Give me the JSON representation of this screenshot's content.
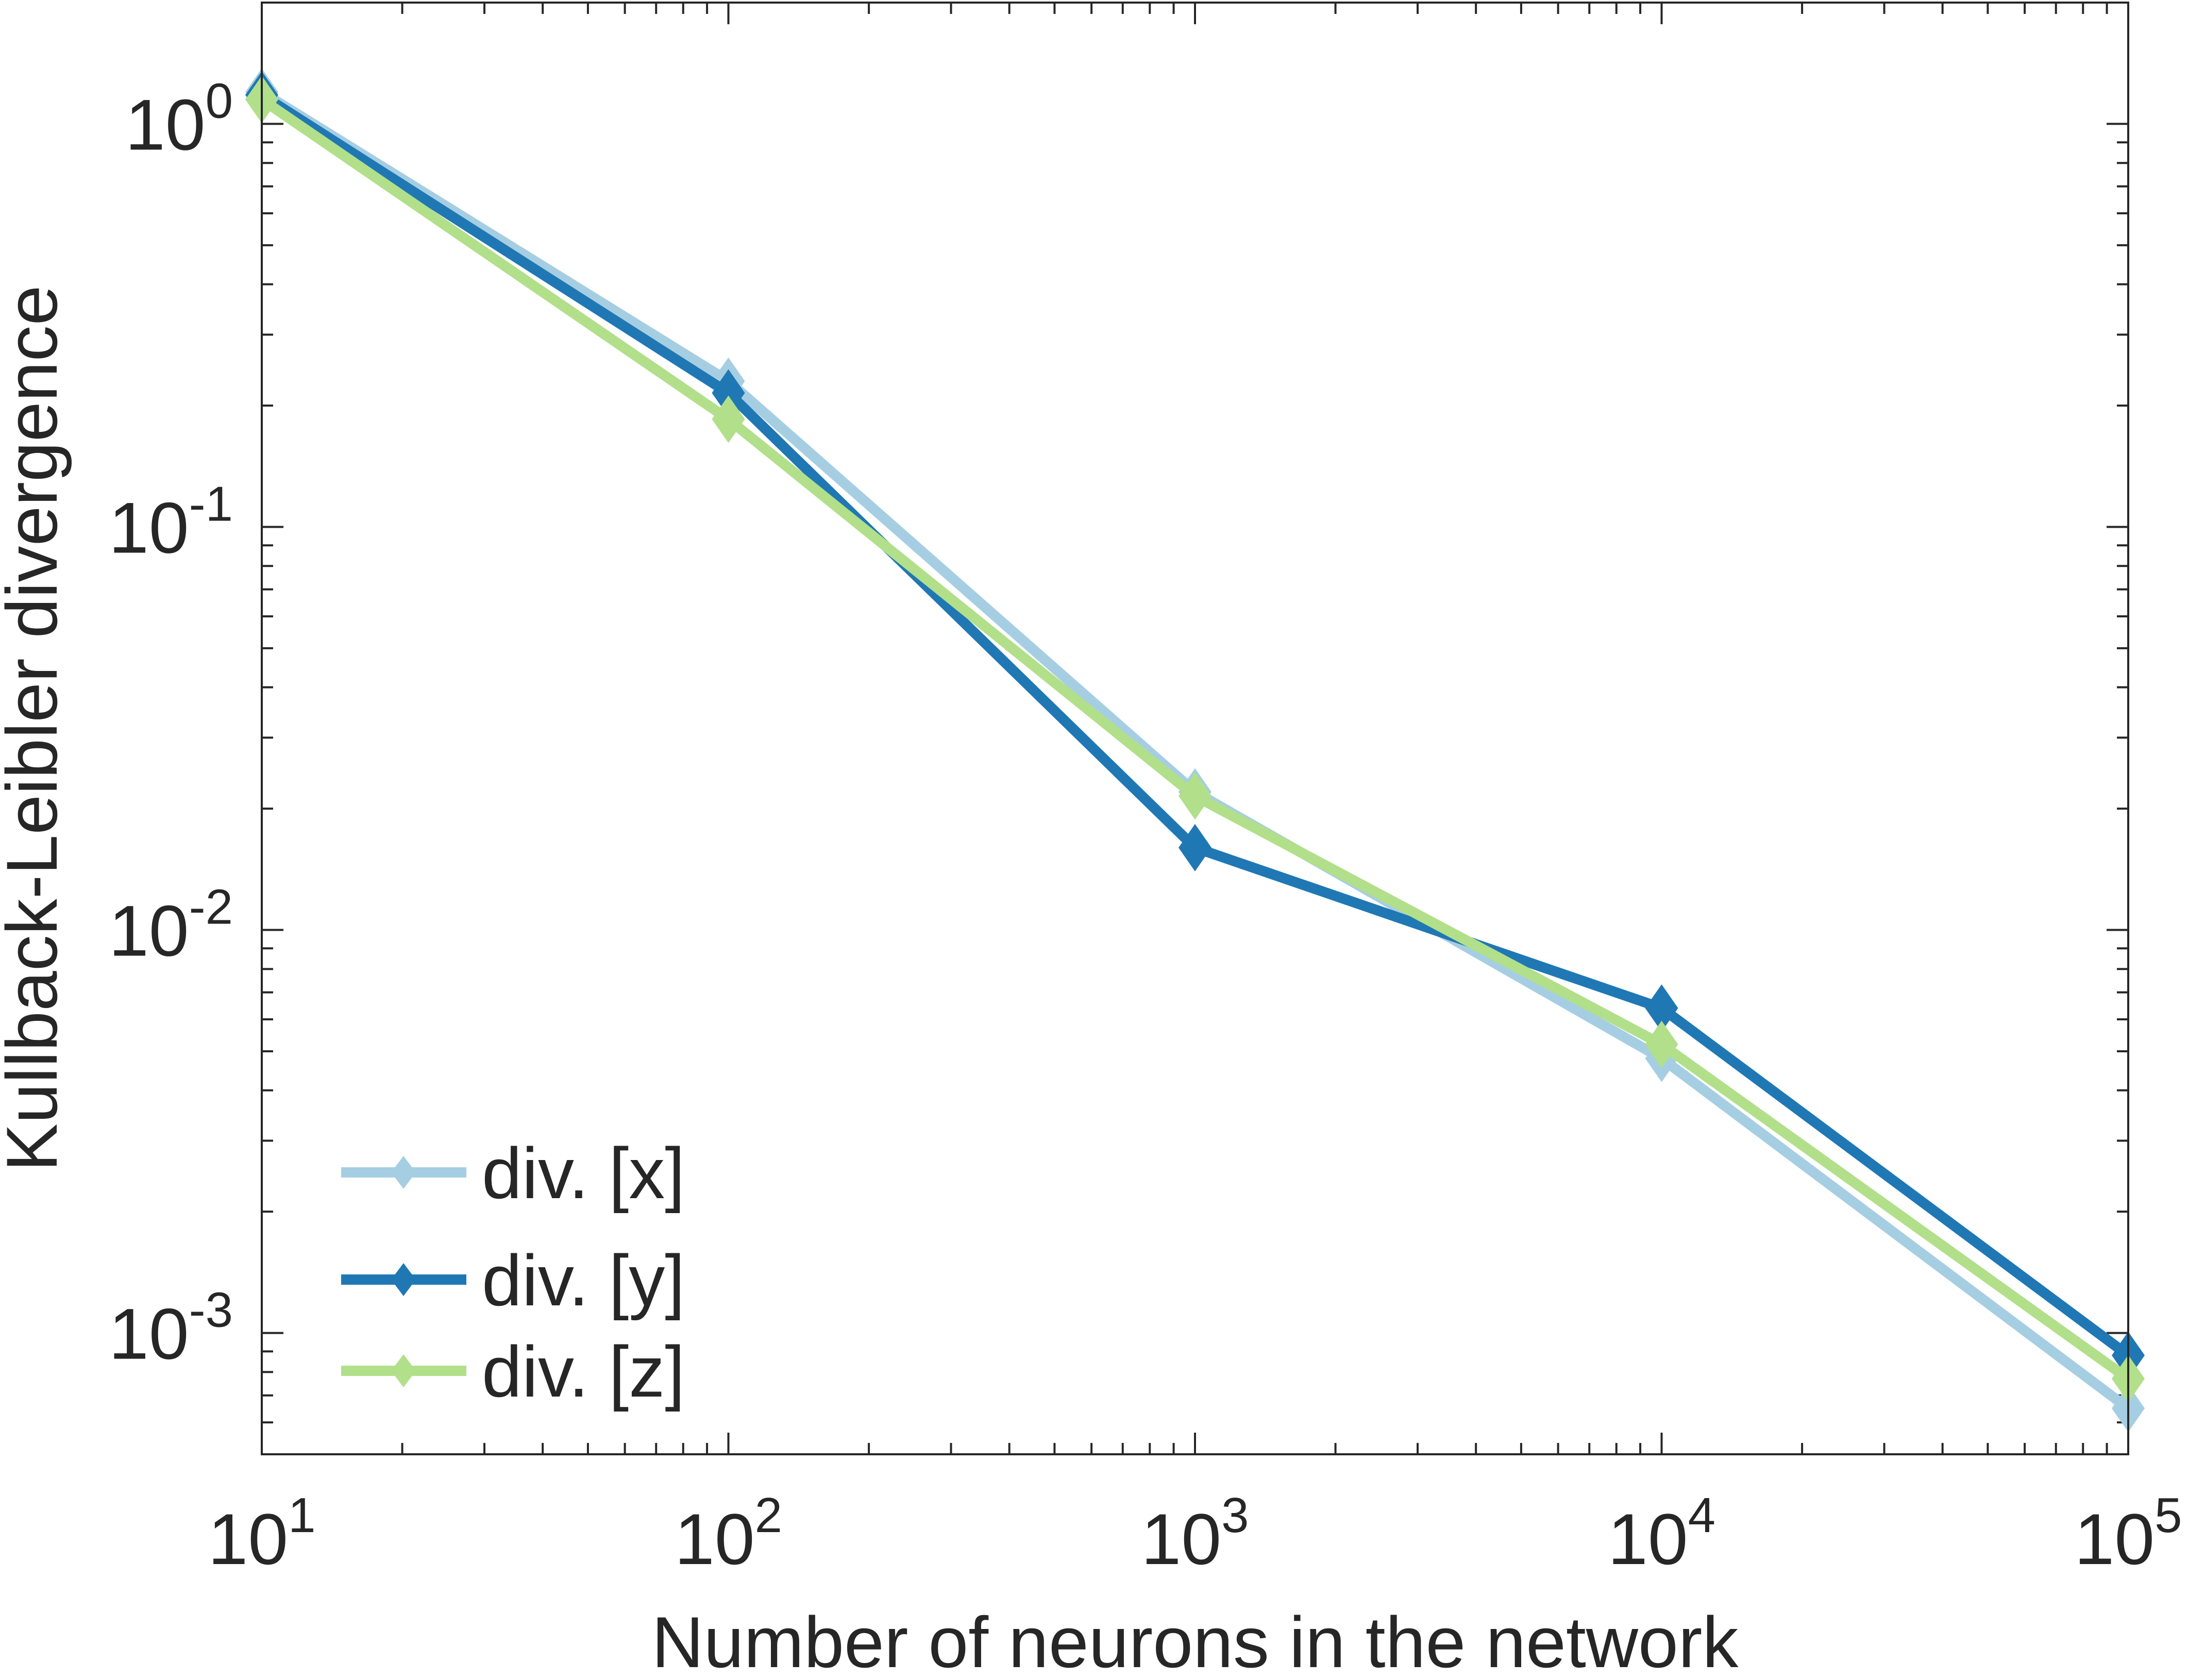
{
  "chart_data": {
    "type": "line",
    "xscale": "log",
    "yscale": "log",
    "xlim": [
      10,
      100000
    ],
    "ylim": [
      0.0005,
      2
    ],
    "xlabel": "Number of neurons in the network",
    "ylabel": "Kullback-Leibler divergence",
    "x_ticks": [
      {
        "base": "10",
        "exp": "1"
      },
      {
        "base": "10",
        "exp": "2"
      },
      {
        "base": "10",
        "exp": "3"
      },
      {
        "base": "10",
        "exp": "4"
      },
      {
        "base": "10",
        "exp": "5"
      }
    ],
    "y_ticks": [
      {
        "base": "10",
        "exp": "0"
      },
      {
        "base": "10",
        "exp": "-1"
      },
      {
        "base": "10",
        "exp": "-2"
      },
      {
        "base": "10",
        "exp": "-3"
      }
    ],
    "grid": false,
    "legend": "bottom-left",
    "x": [
      10,
      100,
      1000,
      10000,
      100000
    ],
    "series": [
      {
        "name": "div. [x]",
        "color": "#a6cee3",
        "values": [
          1.2,
          0.23,
          0.022,
          0.0048,
          0.00065
        ]
      },
      {
        "name": "div. [y]",
        "color": "#1f78b4",
        "values": [
          1.18,
          0.215,
          0.016,
          0.0064,
          0.00088
        ]
      },
      {
        "name": "div. [z]",
        "color": "#b2df8a",
        "values": [
          1.15,
          0.185,
          0.0215,
          0.0052,
          0.00077
        ]
      }
    ]
  }
}
